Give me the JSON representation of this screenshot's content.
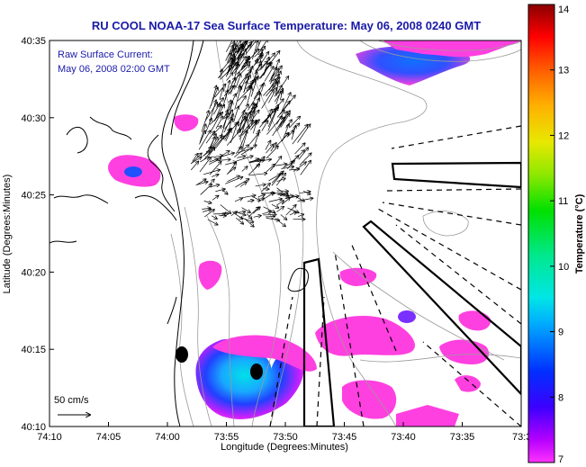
{
  "title": "RU COOL  NOAA-17  Sea Surface Temperature:  May 06, 2008 0240 GMT",
  "annotation": {
    "line1": "Raw Surface Current:",
    "line2": "May 06, 2008 02:00 GMT"
  },
  "scale": {
    "label": "50 cm/s"
  },
  "axes": {
    "xlabel": "Longitude (Degrees:Minutes)",
    "ylabel": "Latitude (Degrees:Minutes)",
    "xticks": [
      "74:10",
      "74:05",
      "74:00",
      "73:55",
      "73:50",
      "73:45",
      "73:40",
      "73:35",
      "73:3"
    ],
    "yticks": [
      "40:35",
      "40:30",
      "40:25",
      "40:20",
      "40:15",
      "40:10"
    ]
  },
  "colorbar": {
    "label": "Temperature (°C)",
    "ticks": [
      "14",
      "13",
      "12",
      "11",
      "10",
      "9",
      "8",
      "7"
    ],
    "range": [
      7,
      14
    ]
  },
  "colors": {
    "title": "#1a1aa8",
    "land": "#ffffff",
    "sst_cold": "#ff3fd0",
    "sst_mid": "#1f3fff",
    "sst_warm": "#00d8e8"
  }
}
